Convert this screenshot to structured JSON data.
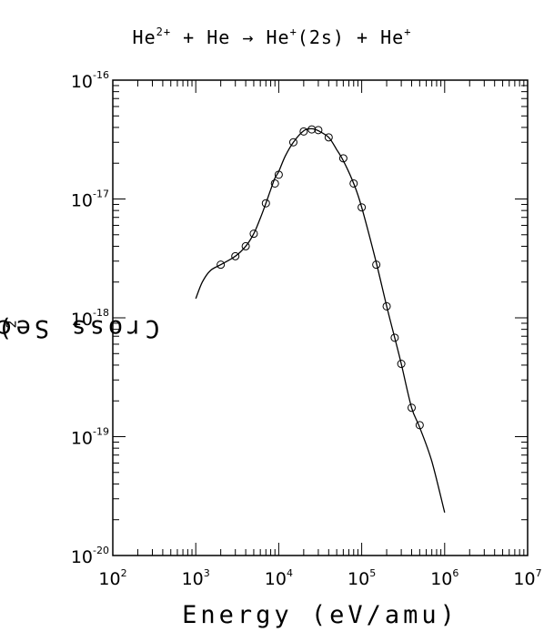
{
  "title": {
    "reactant": "He",
    "reactant_charge": "2+",
    "plus1": "+",
    "target": "He",
    "arrow": "→",
    "product": "He",
    "product_charge": "+",
    "product_state": "(2s)",
    "plus2": "+",
    "product2": "He",
    "product2_charge": "+"
  },
  "chart_data": {
    "type": "line",
    "xlabel": "Energy (eV/amu)",
    "ylabel_base": "Cross Section (cm",
    "ylabel_exp": "2",
    "ylabel_close": ")",
    "xscale": "log",
    "yscale": "log",
    "xlim": [
      100,
      10000000
    ],
    "ylim": [
      1e-20,
      1e-16
    ],
    "grid": false,
    "x_ticks": [
      {
        "base": "10",
        "exp": "2"
      },
      {
        "base": "10",
        "exp": "3"
      },
      {
        "base": "10",
        "exp": "4"
      },
      {
        "base": "10",
        "exp": "5"
      },
      {
        "base": "10",
        "exp": "6"
      },
      {
        "base": "10",
        "exp": "7"
      }
    ],
    "y_ticks": [
      {
        "base": "10",
        "exp": "-20"
      },
      {
        "base": "10",
        "exp": "-19"
      },
      {
        "base": "10",
        "exp": "-18"
      },
      {
        "base": "10",
        "exp": "-17"
      },
      {
        "base": "10",
        "exp": "-16"
      }
    ],
    "series": [
      {
        "kind": "fit-line",
        "x": [
          1000,
          1200,
          1500,
          2000,
          3000,
          4000,
          5000,
          6000,
          7000,
          8000,
          9000,
          10000,
          12000,
          15000,
          20000,
          25000,
          30000,
          40000,
          50000,
          60000,
          80000,
          100000,
          150000,
          200000,
          250000,
          300000,
          400000,
          500000,
          700000,
          1000000
        ],
        "y": [
          1.45e-18,
          2e-18,
          2.5e-18,
          2.8e-18,
          3.3e-18,
          4e-18,
          5.1e-18,
          6.9e-18,
          9.2e-18,
          1.2e-17,
          1.5e-17,
          1.7e-17,
          2.3e-17,
          3e-17,
          3.75e-17,
          3.9e-17,
          3.75e-17,
          3.3e-17,
          2.6e-17,
          2.1e-17,
          1.35e-17,
          8.5e-18,
          2.9e-18,
          1.25e-18,
          6.8e-19,
          4.1e-19,
          1.75e-19,
          1.2e-19,
          6.2e-20,
          2.3e-20
        ]
      },
      {
        "kind": "data-points",
        "marker": "circle",
        "x": [
          2000,
          3000,
          4000,
          5000,
          7000,
          9000,
          10000,
          15000,
          20000,
          25000,
          30000,
          40000,
          60000,
          80000,
          100000,
          150000,
          200000,
          250000,
          300000,
          400000,
          500000
        ],
        "y": [
          2.8e-18,
          3.3e-18,
          4e-18,
          5.1e-18,
          9.2e-18,
          1.35e-17,
          1.6e-17,
          3e-17,
          3.7e-17,
          3.85e-17,
          3.8e-17,
          3.3e-17,
          2.2e-17,
          1.35e-17,
          8.5e-18,
          2.8e-18,
          1.25e-18,
          6.8e-19,
          4.1e-19,
          1.75e-19,
          1.25e-19
        ]
      }
    ]
  }
}
